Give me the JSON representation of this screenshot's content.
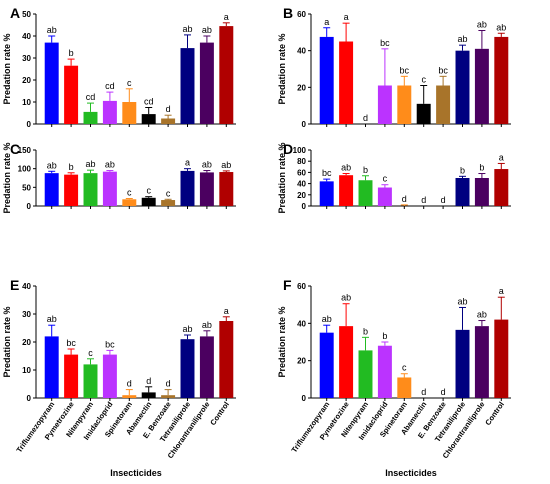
{
  "colors": [
    "#0000ff",
    "#ff0000",
    "#22bb22",
    "#bb33ff",
    "#ff8c1a",
    "#000000",
    "#a8742a",
    "#000080",
    "#4b0060",
    "#b00000"
  ],
  "chart_data": [
    {
      "panel": "A",
      "type": "bar",
      "categories": [
        "Triflumezopyram",
        "Pymetrozine",
        "Nitenpyram",
        "Imidacloprid",
        "Spinetoram",
        "Abamectin",
        "E. Benzoate",
        "Tetraniliprole",
        "Chlorantraniliprole",
        "Control"
      ],
      "values": [
        37,
        26.5,
        5.5,
        10.5,
        10,
        4.5,
        2.5,
        34.5,
        37,
        44.5
      ],
      "errors": [
        3,
        3,
        4,
        4,
        6,
        3,
        1.5,
        6,
        3,
        1.5
      ],
      "letters": [
        "ab",
        "b",
        "cd",
        "cd",
        "c",
        "cd",
        "d",
        "ab",
        "ab",
        "a"
      ],
      "ylabel": "Predation rate %",
      "ylim": [
        0,
        50
      ],
      "yticks": [
        0,
        10,
        20,
        30,
        40,
        50
      ]
    },
    {
      "panel": "B",
      "type": "bar",
      "categories": [
        "Triflumezopyram",
        "Pymetrozine",
        "Nitenpyram",
        "Imidacloprid",
        "Spinetoram",
        "Abamectin",
        "E. Benzoate",
        "Tetraniliprole",
        "Chlorantraniliprole",
        "Control"
      ],
      "values": [
        47.5,
        45,
        0,
        21,
        21,
        11,
        21,
        40,
        41,
        47.5
      ],
      "errors": [
        5,
        10,
        0,
        20,
        5,
        10,
        5,
        3,
        10,
        2
      ],
      "letters": [
        "a",
        "a",
        "d",
        "bc",
        "bc",
        "c",
        "bc",
        "ab",
        "ab",
        "ab"
      ],
      "ylabel": "Predation rate %",
      "ylim": [
        0,
        60
      ],
      "yticks": [
        0,
        20,
        40,
        60
      ]
    },
    {
      "panel": "C",
      "type": "bar",
      "categories": [
        "Triflumezopyram",
        "Pymetrozine",
        "Nitenpyram",
        "Imidacloprid",
        "Spinetoram",
        "Abamectin",
        "E. Benzoate",
        "Tetraniliprole",
        "Chlorantraniliprole",
        "Control"
      ],
      "values": [
        88,
        84,
        88,
        92,
        18,
        22,
        16,
        94,
        90,
        91
      ],
      "errors": [
        5,
        5,
        8,
        3,
        2,
        3,
        2,
        6,
        5,
        3
      ],
      "letters": [
        "ab",
        "b",
        "ab",
        "ab",
        "c",
        "c",
        "c",
        "a",
        "ab",
        "ab"
      ],
      "ylabel": "Predation rate %",
      "ylim": [
        0,
        150
      ],
      "yticks": [
        0,
        50,
        100,
        150
      ]
    },
    {
      "panel": "D",
      "type": "bar",
      "categories": [
        "Triflumezopyram",
        "Pymetrozine",
        "Nitenpyram",
        "Imidacloprid",
        "Spinetoram",
        "Abamectin",
        "E. Benzoate",
        "Tetraniliprole",
        "Chlorantraniliprole",
        "Control"
      ],
      "values": [
        44,
        55,
        46,
        33,
        0,
        0,
        0,
        50,
        50,
        66
      ],
      "errors": [
        4,
        3,
        8,
        5,
        2,
        0,
        0,
        3,
        8,
        10
      ],
      "letters": [
        "bc",
        "ab",
        "b",
        "c",
        "d",
        "d",
        "d",
        "b",
        "b",
        "a"
      ],
      "ylabel": "Predation rate %",
      "ylim": [
        0,
        100
      ],
      "yticks": [
        0,
        20,
        40,
        60,
        80,
        100
      ]
    },
    {
      "panel": "E",
      "type": "bar",
      "categories": [
        "Triflumezopyram",
        "Pymetrozine",
        "Nitenpyram",
        "Imidacloprid",
        "Spinetoram",
        "Abamectin",
        "E. Benzoate",
        "Tetraniliprole",
        "Chlorantraniliprole",
        "Control"
      ],
      "values": [
        22,
        15.5,
        12,
        15.5,
        1,
        2,
        1,
        21,
        22,
        27.5
      ],
      "errors": [
        4,
        2,
        2,
        1.5,
        2,
        2,
        2,
        1.5,
        2,
        1.5
      ],
      "letters": [
        "ab",
        "bc",
        "c",
        "bc",
        "d",
        "d",
        "d",
        "ab",
        "ab",
        "a"
      ],
      "ylabel": "Predation rate %",
      "ylim": [
        0,
        40
      ],
      "yticks": [
        0,
        10,
        20,
        30,
        40
      ]
    },
    {
      "panel": "F",
      "type": "bar",
      "categories": [
        "Triflumezopyram",
        "Pymetrozine",
        "Nitenpyram",
        "Imidacloprid",
        "Spinetoram",
        "Abamectin",
        "E. Benzoate",
        "Tetraniliprole",
        "Chlorantraniliprole",
        "Control"
      ],
      "values": [
        35,
        38.5,
        25.5,
        28,
        11,
        0,
        0,
        36.5,
        38.5,
        42
      ],
      "errors": [
        4,
        12,
        7,
        2,
        2,
        0,
        0,
        12,
        3,
        12
      ],
      "letters": [
        "ab",
        "ab",
        "b",
        "b",
        "c",
        "d",
        "d",
        "ab",
        "ab",
        "a"
      ],
      "ylabel": "Predation rate %",
      "ylim": [
        0,
        60
      ],
      "yticks": [
        0,
        20,
        40,
        60
      ]
    }
  ],
  "xlabel": "Insecticides"
}
